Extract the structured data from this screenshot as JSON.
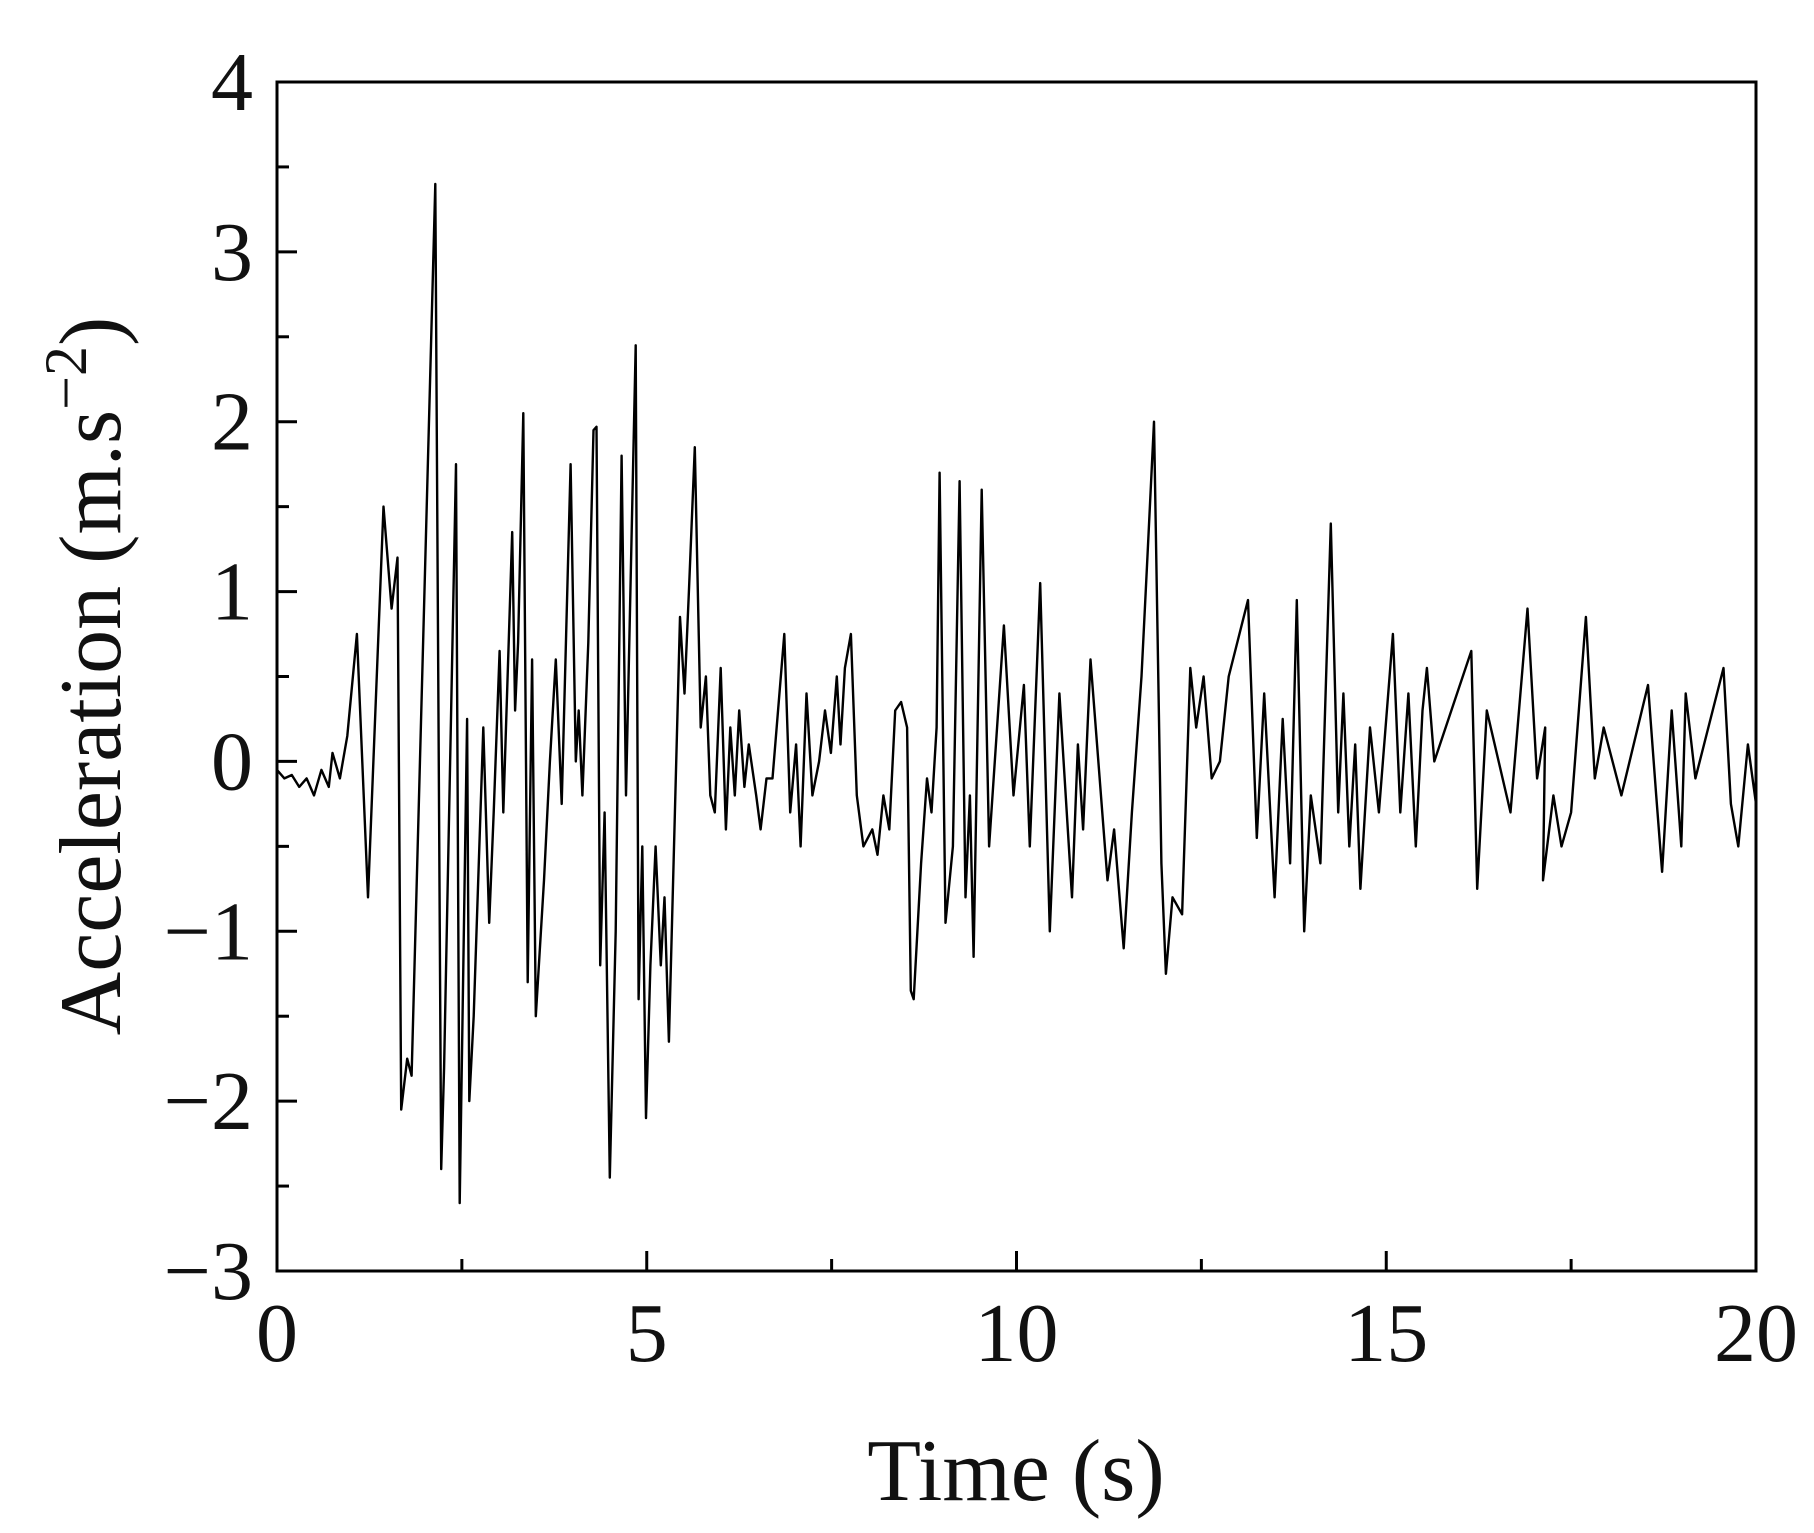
{
  "chart_data": {
    "type": "line",
    "xlabel": "Time (s)",
    "ylabel": {
      "text": "Acceleration (m.s",
      "superscript": "−2",
      "suffix": ")"
    },
    "color": "#000000",
    "xlim": [
      0,
      20
    ],
    "xticks": [
      0,
      5,
      10,
      15,
      20
    ],
    "xminorticks": [
      2.5,
      7.5,
      12.5,
      17.5
    ],
    "ylim": [
      -3,
      4
    ],
    "yticks": [
      {
        "value": -3,
        "label": "−3"
      },
      {
        "value": -2,
        "label": "−2"
      },
      {
        "value": -1,
        "label": "−1"
      },
      0,
      1,
      2,
      3,
      4
    ],
    "yminorticks": [
      -2.5,
      -1.5,
      -0.5,
      0.5,
      1.5,
      2.5,
      3.5
    ],
    "x": [
      0,
      0.1,
      0.2,
      0.3,
      0.4,
      0.5,
      0.6,
      0.7,
      0.75,
      0.85,
      0.95,
      1.08,
      1.23,
      1.44,
      1.55,
      1.63,
      1.68,
      1.76,
      1.82,
      2.14,
      2.22,
      2.26,
      2.42,
      2.47,
      2.57,
      2.6,
      2.66,
      2.79,
      2.87,
      2.93,
      3.01,
      3.06,
      3.18,
      3.22,
      3.26,
      3.33,
      3.39,
      3.45,
      3.5,
      3.61,
      3.69,
      3.77,
      3.85,
      3.97,
      4.04,
      4.08,
      4.13,
      4.21,
      4.28,
      4.32,
      4.37,
      4.43,
      4.5,
      4.58,
      4.66,
      4.72,
      4.85,
      4.89,
      4.94,
      4.99,
      5.05,
      5.12,
      5.19,
      5.24,
      5.3,
      5.38,
      5.45,
      5.51,
      5.57,
      5.65,
      5.73,
      5.8,
      5.86,
      5.92,
      6.0,
      6.07,
      6.13,
      6.19,
      6.25,
      6.32,
      6.38,
      6.48,
      6.54,
      6.62,
      6.7,
      6.86,
      6.94,
      7.02,
      7.08,
      7.16,
      7.24,
      7.33,
      7.41,
      7.49,
      7.57,
      7.62,
      7.68,
      7.76,
      7.84,
      7.93,
      8.05,
      8.12,
      8.2,
      8.28,
      8.36,
      8.44,
      8.52,
      8.57,
      8.61,
      8.71,
      8.79,
      8.85,
      8.92,
      8.96,
      9.04,
      9.14,
      9.23,
      9.31,
      9.37,
      9.42,
      9.53,
      9.63,
      9.83,
      9.96,
      10.1,
      10.18,
      10.32,
      10.45,
      10.58,
      10.75,
      10.83,
      10.9,
      11.0,
      11.23,
      11.32,
      11.45,
      11.56,
      11.69,
      11.77,
      11.86,
      11.96,
      12.02,
      12.11,
      12.24,
      12.35,
      12.43,
      12.53,
      12.64,
      12.75,
      12.87,
      13.13,
      13.25,
      13.35,
      13.49,
      13.6,
      13.7,
      13.79,
      13.89,
      13.98,
      14.11,
      14.25,
      14.35,
      14.42,
      14.5,
      14.58,
      14.65,
      14.78,
      14.9,
      15.09,
      15.19,
      15.3,
      15.4,
      15.49,
      15.55,
      15.65,
      16.15,
      16.23,
      16.36,
      16.68,
      16.91,
      17.04,
      17.15,
      17.12,
      17.26,
      17.37,
      17.5,
      17.7,
      17.82,
      17.94,
      18.18,
      18.54,
      18.65,
      18.73,
      18.86,
      18.99,
      19.05,
      19.18,
      19.56,
      19.66,
      19.76,
      19.89,
      20.0
    ],
    "values": [
      -0.05,
      -0.1,
      -0.08,
      -0.15,
      -0.1,
      -0.2,
      -0.05,
      -0.15,
      0.05,
      -0.1,
      0.15,
      0.75,
      -0.8,
      1.5,
      0.9,
      1.2,
      -2.05,
      -1.75,
      -1.85,
      3.4,
      -2.4,
      -1.8,
      1.75,
      -2.6,
      0.25,
      -2.0,
      -1.5,
      0.2,
      -0.95,
      -0.3,
      0.65,
      -0.3,
      1.35,
      0.3,
      0.7,
      2.05,
      -1.3,
      0.6,
      -1.5,
      -0.7,
      0.0,
      0.6,
      -0.25,
      1.75,
      0.0,
      0.3,
      -0.2,
      0.7,
      1.95,
      1.97,
      -1.2,
      -0.3,
      -2.45,
      -1.0,
      1.8,
      -0.2,
      2.45,
      -1.4,
      -0.5,
      -2.1,
      -1.2,
      -0.5,
      -1.2,
      -0.8,
      -1.65,
      -0.3,
      0.85,
      0.4,
      1.0,
      1.85,
      0.2,
      0.5,
      -0.2,
      -0.3,
      0.55,
      -0.4,
      0.2,
      -0.2,
      0.3,
      -0.15,
      0.1,
      -0.2,
      -0.4,
      -0.1,
      -0.1,
      0.75,
      -0.3,
      0.1,
      -0.5,
      0.4,
      -0.2,
      0.0,
      0.3,
      0.05,
      0.5,
      0.1,
      0.55,
      0.75,
      -0.2,
      -0.5,
      -0.4,
      -0.55,
      -0.2,
      -0.4,
      0.3,
      0.35,
      0.2,
      -1.35,
      -1.4,
      -0.6,
      -0.1,
      -0.3,
      0.2,
      1.7,
      -0.95,
      -0.5,
      1.65,
      -0.8,
      -0.2,
      -1.15,
      1.6,
      -0.5,
      0.8,
      -0.2,
      0.45,
      -0.5,
      1.05,
      -1.0,
      0.4,
      -0.8,
      0.1,
      -0.4,
      0.6,
      -0.7,
      -0.4,
      -1.1,
      -0.3,
      0.5,
      1.2,
      2.0,
      -0.6,
      -1.25,
      -0.8,
      -0.9,
      0.55,
      0.2,
      0.5,
      -0.1,
      0.0,
      0.5,
      0.95,
      -0.45,
      0.4,
      -0.8,
      0.25,
      -0.6,
      0.95,
      -1.0,
      -0.2,
      -0.6,
      1.4,
      -0.3,
      0.4,
      -0.5,
      0.1,
      -0.75,
      0.2,
      -0.3,
      0.75,
      -0.3,
      0.4,
      -0.5,
      0.3,
      0.55,
      0.0,
      0.65,
      -0.75,
      0.3,
      -0.3,
      0.9,
      -0.1,
      0.2,
      -0.7,
      -0.2,
      -0.5,
      -0.3,
      0.85,
      -0.1,
      0.2,
      -0.2,
      0.45,
      -0.2,
      -0.65,
      0.3,
      -0.5,
      0.4,
      -0.1,
      0.55,
      -0.25,
      -0.5,
      0.1,
      -0.25
    ]
  }
}
